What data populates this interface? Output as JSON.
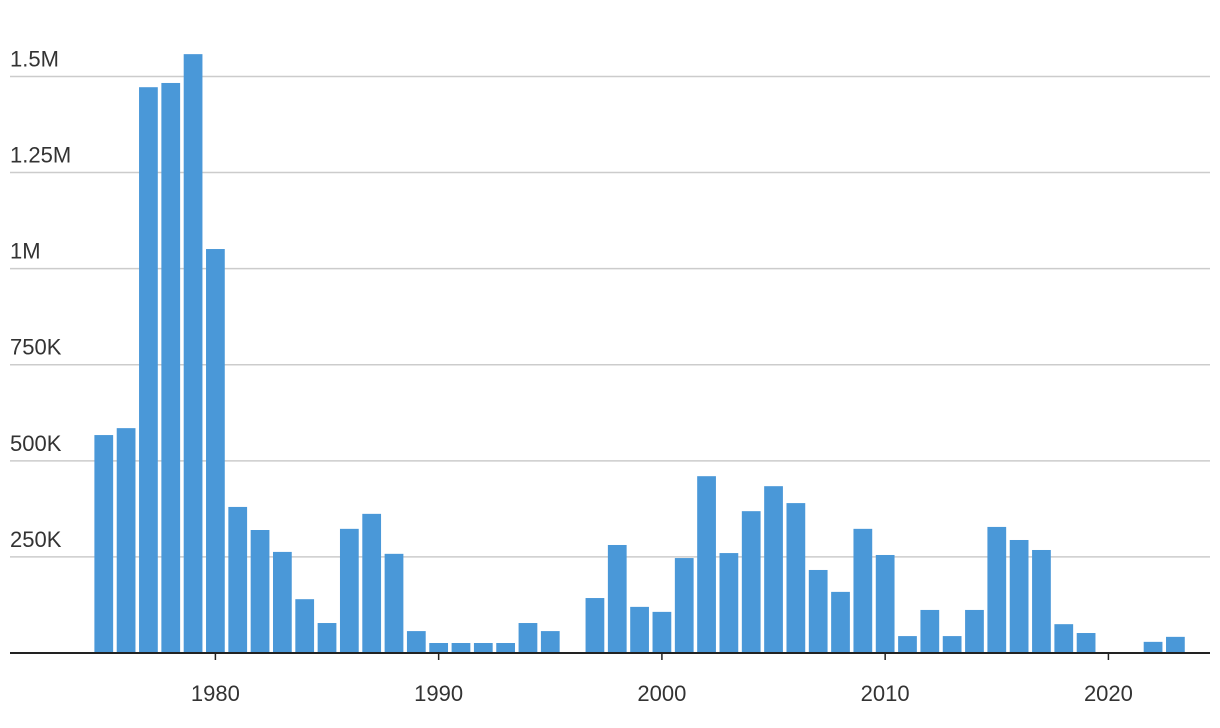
{
  "chart_data": {
    "type": "bar",
    "x": [
      1975,
      1976,
      1977,
      1978,
      1979,
      1980,
      1981,
      1982,
      1983,
      1984,
      1985,
      1986,
      1987,
      1988,
      1989,
      1990,
      1991,
      1992,
      1993,
      1994,
      1995,
      1996,
      1997,
      1998,
      1999,
      2000,
      2001,
      2002,
      2003,
      2004,
      2005,
      2006,
      2007,
      2008,
      2009,
      2010,
      2011,
      2012,
      2013,
      2014,
      2015,
      2016,
      2017,
      2018,
      2019,
      2020,
      2021,
      2022,
      2023
    ],
    "values": [
      567000,
      585000,
      1472000,
      1483000,
      1558000,
      1051000,
      380000,
      320000,
      263000,
      140000,
      78000,
      323000,
      362000,
      258000,
      57000,
      26000,
      26000,
      26000,
      26000,
      78000,
      57000,
      null,
      143000,
      281000,
      120000,
      107000,
      247000,
      460000,
      260000,
      369000,
      434000,
      390000,
      216000,
      159000,
      323000,
      255000,
      44000,
      112000,
      44000,
      112000,
      328000,
      294000,
      268000,
      75000,
      52000,
      null,
      null,
      29000,
      42000
    ],
    "color": "#4a98d8",
    "xlim": [
      1970.8,
      2024.55
    ],
    "xticks": [
      1980,
      1990,
      2000,
      2010,
      2020
    ],
    "ylim": [
      0,
      1600000
    ],
    "yticks": [
      {
        "value": 250000,
        "label": "250K"
      },
      {
        "value": 500000,
        "label": "500K"
      },
      {
        "value": 750000,
        "label": "750K"
      },
      {
        "value": 1000000,
        "label": "1M"
      },
      {
        "value": 1250000,
        "label": "1.25M"
      },
      {
        "value": 1500000,
        "label": "1.5M"
      }
    ],
    "grid": true
  }
}
